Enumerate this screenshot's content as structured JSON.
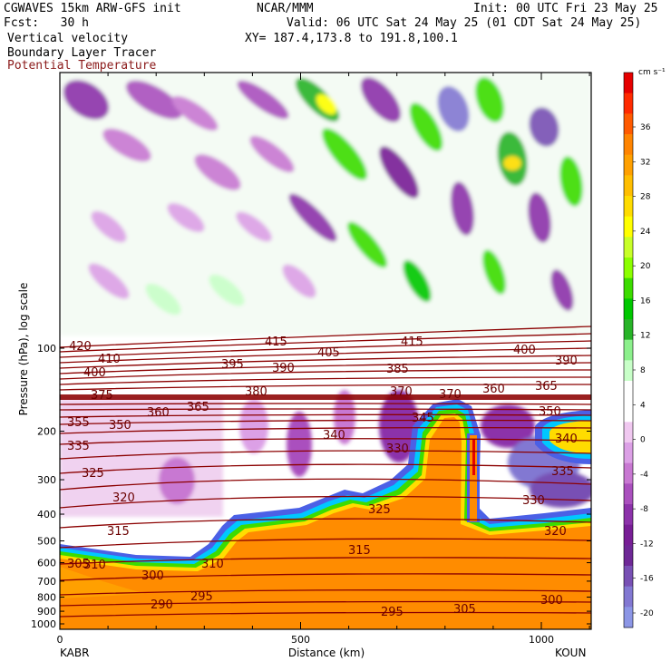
{
  "header": {
    "model": "CGWAVES 15km ARW-GFS init",
    "org": "NCAR/MMM",
    "init": "Init: 00 UTC Fri 23 May 25",
    "fcst": "Fcst:   30 h",
    "valid": "Valid: 06 UTC Sat 24 May 25 (01 CDT Sat 24 May 25)",
    "field1": "Vertical velocity",
    "field2": "Boundary Layer Tracer",
    "field3": "Potential Temperature",
    "xy": "XY= 187.4,173.8 to 191.8,100.1"
  },
  "colors": {
    "theta_contour": "#8b0000",
    "field3_text": "#8b1a1a"
  },
  "chart_data": {
    "type": "heatmap",
    "title": "",
    "xlabel": "Distance (km)",
    "ylabel": "Pressure (hPa), log scale",
    "x_ticks": [
      0,
      500,
      1000
    ],
    "x_range": [
      0,
      1120
    ],
    "y_ticks": [
      100,
      200,
      300,
      400,
      500,
      600,
      700,
      800,
      900,
      1000
    ],
    "y_scale": "log",
    "station_left": "KABR",
    "station_right": "KOUN",
    "colorbar": {
      "unit": "cm s⁻¹",
      "tick_labels": [
        "36",
        "32",
        "28",
        "24",
        "20",
        "16",
        "12",
        "8",
        "4",
        "0",
        "-4",
        "-8",
        "-12",
        "-16",
        "-20"
      ],
      "colors": [
        "#e60000",
        "#ff2a00",
        "#ff5a00",
        "#ff8400",
        "#ffa000",
        "#ffbe00",
        "#ffdc00",
        "#ffff00",
        "#c8ff28",
        "#8cff00",
        "#3cdc00",
        "#00c800",
        "#28b428",
        "#8cf08c",
        "#c8ffc8",
        "#ffffff",
        "#ffffff",
        "#f0c8f0",
        "#dca0e6",
        "#c878d2",
        "#aa50be",
        "#8c32aa",
        "#781e96",
        "#6e2896",
        "#7850b4",
        "#8278d2",
        "#8c96e6"
      ]
    },
    "theta_labels": [
      "420",
      "415",
      "415",
      "410",
      "405",
      "400",
      "400",
      "395",
      "390",
      "390",
      "385",
      "380",
      "375",
      "370",
      "370",
      "365",
      "365",
      "360",
      "360",
      "355",
      "350",
      "350",
      "345",
      "340",
      "340",
      "335",
      "335",
      "330",
      "330",
      "325",
      "325",
      "320",
      "320",
      "315",
      "315",
      "310",
      "310",
      "305",
      "305",
      "300",
      "300",
      "295",
      "295",
      "290"
    ]
  }
}
